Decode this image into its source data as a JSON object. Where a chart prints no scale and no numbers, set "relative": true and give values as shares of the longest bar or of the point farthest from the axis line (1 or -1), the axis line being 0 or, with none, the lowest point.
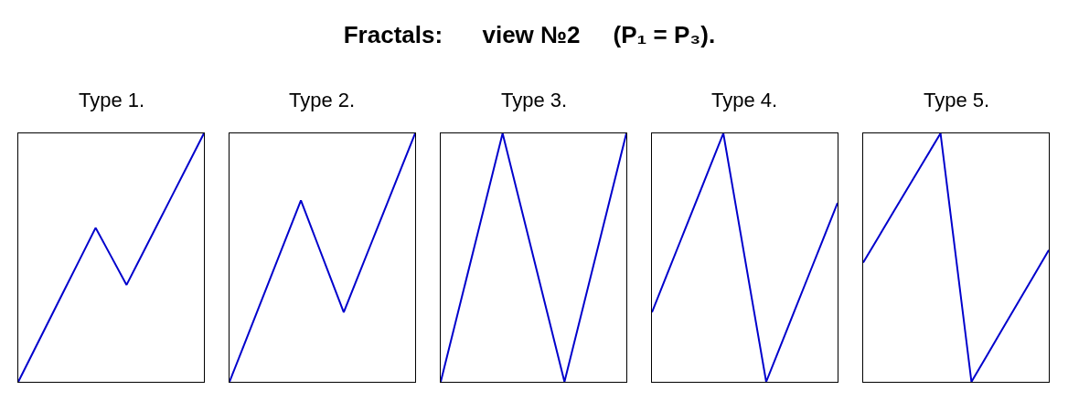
{
  "chart_data": [
    {
      "type": "other",
      "title": "Fractals:      view №2     (P₁ = P₃)."
    },
    {
      "type": "line",
      "title": "Type 1.",
      "categories": [
        null,
        null,
        null,
        null,
        null,
        null,
        null,
        null,
        null,
        null,
        null,
        null,
        null
      ],
      "values": [
        0,
        0.124,
        0.248,
        0.372,
        0.496,
        0.62,
        0.505,
        0.39,
        0.512,
        0.634,
        0.756,
        0.878,
        1
      ],
      "color": "#0000cc",
      "relative": true
    },
    {
      "type": "line",
      "title": "Type 2.",
      "categories": [
        null,
        null,
        null,
        null,
        null,
        null,
        null,
        null,
        null,
        null,
        null,
        null,
        null,
        null
      ],
      "values": [
        0,
        0.146,
        0.292,
        0.438,
        0.584,
        0.73,
        0.58,
        0.43,
        0.28,
        0.424,
        0.568,
        0.712,
        0.856,
        1
      ],
      "color": "#0000cc",
      "relative": true
    },
    {
      "type": "line",
      "title": "Type 3.",
      "categories": [
        null,
        null,
        null,
        null
      ],
      "values": [
        0,
        1,
        0,
        1
      ],
      "color": "#0000cc",
      "relative": true
    },
    {
      "type": "line",
      "title": "Type 4.",
      "categories": [
        null,
        null,
        null,
        null,
        null,
        null,
        null,
        null,
        null,
        null,
        null,
        null,
        null,
        null
      ],
      "values": [
        0.28,
        0.424,
        0.568,
        0.712,
        0.856,
        1,
        0.667,
        0.333,
        0,
        0.144,
        0.288,
        0.432,
        0.576,
        0.72
      ],
      "color": "#0000cc",
      "relative": true
    },
    {
      "type": "line",
      "title": "Type 5.",
      "categories": [
        null,
        null,
        null,
        null,
        null,
        null,
        null,
        null,
        null,
        null,
        null,
        null,
        null
      ],
      "values": [
        0.48,
        0.584,
        0.688,
        0.792,
        0.896,
        1,
        0.5,
        0,
        0.106,
        0.212,
        0.318,
        0.424,
        0.53
      ],
      "color": "#0000cc",
      "relative": true
    }
  ]
}
